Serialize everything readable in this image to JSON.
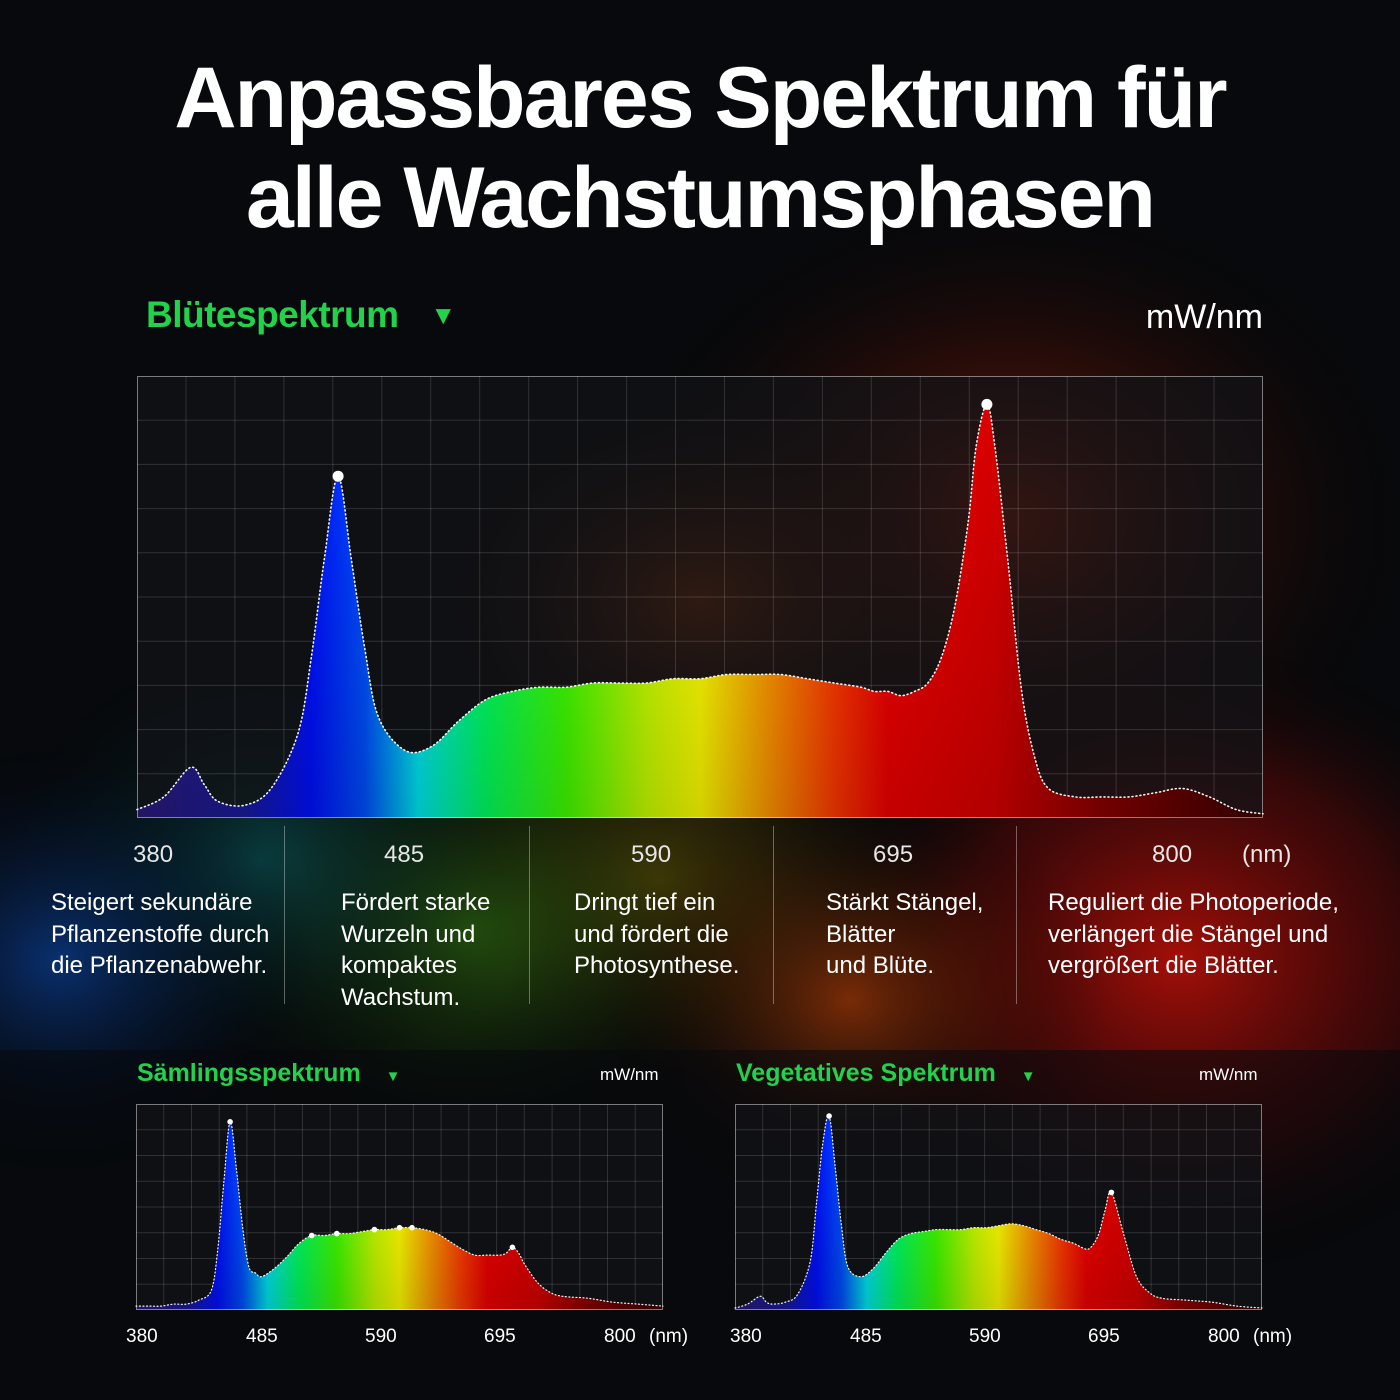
{
  "title": {
    "line1": "Anpassbares Spektrum für",
    "line2": "alle Wachstumsphasen"
  },
  "main": {
    "label": "Blütespektrum",
    "unit": "mW/nm",
    "nm_unit": "(nm)",
    "ticks": [
      "380",
      "485",
      "590",
      "695",
      "800"
    ],
    "descriptions": [
      [
        "Steigert sekundäre",
        "Pflanzenstoffe durch",
        "die Pflanzenabwehr."
      ],
      [
        "Fördert starke",
        "Wurzeln und",
        "kompaktes",
        "Wachstum."
      ],
      [
        "Dringt tief ein",
        "und fördert die",
        "Photosynthese."
      ],
      [
        "Stärkt Stängel,",
        "Blätter",
        "und Blüte."
      ],
      [
        "Reguliert die Photoperiode,",
        "verlängert die Stängel und",
        "vergrößert die Blätter."
      ]
    ]
  },
  "seedling": {
    "label": "Sämlingsspektrum",
    "unit": "mW/nm",
    "nm_unit": "(nm)",
    "ticks": [
      "380",
      "485",
      "590",
      "695",
      "800"
    ]
  },
  "vegetative": {
    "label": "Vegetatives Spektrum",
    "unit": "mW/nm",
    "nm_unit": "(nm)",
    "ticks": [
      "380",
      "485",
      "590",
      "695",
      "800"
    ]
  },
  "colors": {
    "accent": "#22d24a",
    "background": "#07090c"
  },
  "chart_data": [
    {
      "type": "area",
      "title": "Blütespektrum",
      "ylabel": "mW/nm",
      "xlabel": "(nm)",
      "xlim": [
        380,
        800
      ],
      "ylim": [
        0,
        1
      ],
      "x": [
        380,
        390,
        400,
        405,
        410,
        420,
        430,
        440,
        445,
        450,
        455,
        460,
        465,
        470,
        480,
        490,
        500,
        510,
        520,
        530,
        540,
        550,
        560,
        570,
        580,
        590,
        600,
        610,
        620,
        630,
        640,
        650,
        655,
        660,
        665,
        670,
        675,
        680,
        685,
        690,
        693,
        697,
        700,
        705,
        710,
        715,
        720,
        730,
        740,
        750,
        760,
        770,
        780,
        790,
        800
      ],
      "y": [
        0.02,
        0.05,
        0.12,
        0.08,
        0.04,
        0.03,
        0.07,
        0.2,
        0.38,
        0.62,
        0.81,
        0.61,
        0.4,
        0.24,
        0.16,
        0.17,
        0.23,
        0.28,
        0.3,
        0.31,
        0.31,
        0.32,
        0.32,
        0.32,
        0.33,
        0.33,
        0.34,
        0.34,
        0.34,
        0.33,
        0.32,
        0.31,
        0.3,
        0.3,
        0.29,
        0.3,
        0.32,
        0.38,
        0.5,
        0.7,
        0.88,
        0.98,
        0.88,
        0.6,
        0.3,
        0.14,
        0.07,
        0.05,
        0.05,
        0.05,
        0.06,
        0.07,
        0.05,
        0.02,
        0.01
      ]
    },
    {
      "type": "area",
      "title": "Sämlingsspektrum",
      "ylabel": "mW/nm",
      "xlabel": "(nm)",
      "xlim": [
        380,
        800
      ],
      "ylim": [
        0,
        1
      ],
      "x": [
        380,
        390,
        400,
        410,
        420,
        430,
        440,
        445,
        450,
        455,
        460,
        465,
        470,
        475,
        480,
        490,
        500,
        510,
        520,
        530,
        540,
        550,
        560,
        570,
        580,
        590,
        600,
        610,
        620,
        630,
        640,
        650,
        660,
        670,
        675,
        680,
        685,
        690,
        700,
        710,
        720,
        740,
        760,
        780,
        800
      ],
      "y": [
        0.02,
        0.02,
        0.02,
        0.03,
        0.03,
        0.05,
        0.1,
        0.3,
        0.65,
        0.96,
        0.72,
        0.42,
        0.22,
        0.19,
        0.17,
        0.21,
        0.27,
        0.34,
        0.38,
        0.38,
        0.39,
        0.39,
        0.4,
        0.41,
        0.41,
        0.42,
        0.42,
        0.41,
        0.39,
        0.35,
        0.31,
        0.28,
        0.28,
        0.28,
        0.29,
        0.32,
        0.29,
        0.23,
        0.14,
        0.09,
        0.07,
        0.06,
        0.04,
        0.03,
        0.02
      ]
    },
    {
      "type": "area",
      "title": "Vegetatives Spektrum",
      "ylabel": "mW/nm",
      "xlabel": "(nm)",
      "xlim": [
        380,
        800
      ],
      "ylim": [
        0,
        1
      ],
      "x": [
        380,
        390,
        400,
        405,
        410,
        420,
        430,
        440,
        445,
        450,
        455,
        460,
        465,
        470,
        480,
        490,
        500,
        510,
        520,
        530,
        540,
        550,
        560,
        570,
        580,
        590,
        600,
        610,
        620,
        630,
        640,
        650,
        660,
        665,
        670,
        675,
        680,
        690,
        700,
        710,
        720,
        740,
        760,
        780,
        800
      ],
      "y": [
        0.01,
        0.03,
        0.07,
        0.04,
        0.03,
        0.04,
        0.08,
        0.25,
        0.55,
        0.85,
        0.99,
        0.72,
        0.42,
        0.22,
        0.17,
        0.21,
        0.29,
        0.36,
        0.39,
        0.4,
        0.41,
        0.41,
        0.41,
        0.42,
        0.42,
        0.43,
        0.44,
        0.43,
        0.41,
        0.39,
        0.36,
        0.34,
        0.31,
        0.33,
        0.39,
        0.51,
        0.6,
        0.38,
        0.17,
        0.09,
        0.06,
        0.05,
        0.04,
        0.02,
        0.01
      ]
    }
  ]
}
